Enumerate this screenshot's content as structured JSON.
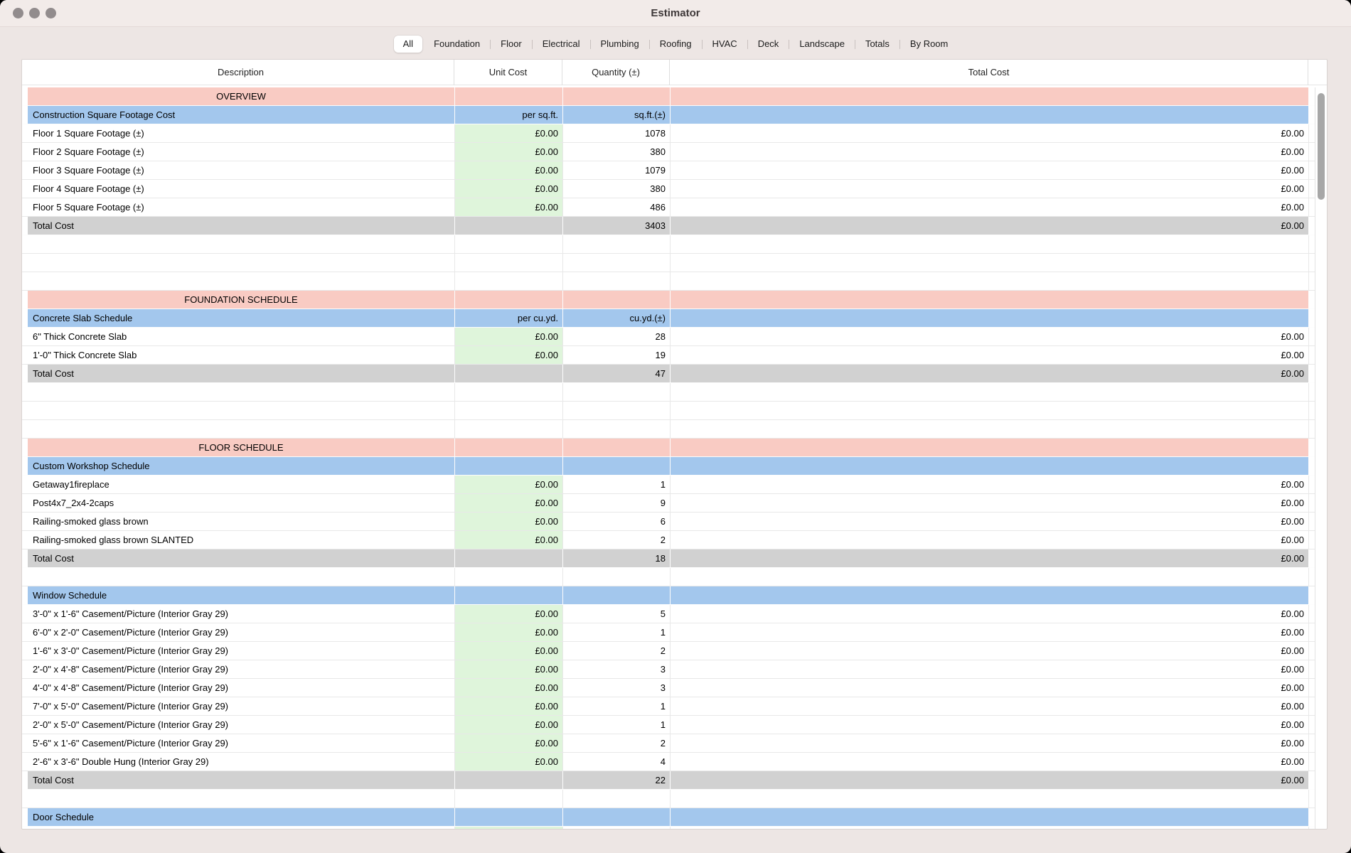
{
  "window": {
    "title": "Estimator"
  },
  "traffic_lights": [
    "close",
    "minimize",
    "zoom"
  ],
  "tabs": {
    "active": "All",
    "items": [
      "All",
      "Foundation",
      "Floor",
      "Electrical",
      "Plumbing",
      "Roofing",
      "HVAC",
      "Deck",
      "Landscape",
      "Totals",
      "By Room"
    ]
  },
  "colors": {
    "section_pink": "#F9CBC3",
    "subheader_blue": "#A3C7ED",
    "unitcost_green": "#DFF5DB",
    "total_gray": "#D1D1D1"
  },
  "table": {
    "columns": [
      "Description",
      "Unit Cost",
      "Quantity (±)",
      "Total Cost"
    ],
    "rows": [
      {
        "t": "section",
        "d": "OVERVIEW",
        "u": "",
        "q": "",
        "c": ""
      },
      {
        "t": "sub",
        "d": "Construction Square Footage Cost",
        "u": "per sq.ft.",
        "q": "sq.ft.(±)",
        "c": ""
      },
      {
        "t": "data",
        "d": "Floor 1 Square Footage (±)",
        "u": "£0.00",
        "q": "1078",
        "c": "£0.00"
      },
      {
        "t": "data",
        "d": "Floor 2 Square Footage (±)",
        "u": "£0.00",
        "q": "380",
        "c": "£0.00"
      },
      {
        "t": "data",
        "d": "Floor 3 Square Footage (±)",
        "u": "£0.00",
        "q": "1079",
        "c": "£0.00"
      },
      {
        "t": "data",
        "d": "Floor 4 Square Footage (±)",
        "u": "£0.00",
        "q": "380",
        "c": "£0.00"
      },
      {
        "t": "data",
        "d": "Floor 5 Square Footage (±)",
        "u": "£0.00",
        "q": "486",
        "c": "£0.00"
      },
      {
        "t": "totalrow",
        "d": "Total Cost",
        "u": "",
        "q": "3403",
        "c": "£0.00"
      },
      {
        "t": "empty",
        "d": "",
        "u": "",
        "q": "",
        "c": ""
      },
      {
        "t": "empty",
        "d": "",
        "u": "",
        "q": "",
        "c": ""
      },
      {
        "t": "empty",
        "d": "",
        "u": "",
        "q": "",
        "c": ""
      },
      {
        "t": "section",
        "d": "FOUNDATION SCHEDULE",
        "u": "",
        "q": "",
        "c": ""
      },
      {
        "t": "sub",
        "d": "Concrete Slab Schedule",
        "u": "per cu.yd.",
        "q": "cu.yd.(±)",
        "c": ""
      },
      {
        "t": "data",
        "d": "6\" Thick Concrete Slab",
        "u": "£0.00",
        "q": "28",
        "c": "£0.00"
      },
      {
        "t": "data",
        "d": "1'-0\" Thick Concrete Slab",
        "u": "£0.00",
        "q": "19",
        "c": "£0.00"
      },
      {
        "t": "totalrow",
        "d": "Total Cost",
        "u": "",
        "q": "47",
        "c": "£0.00"
      },
      {
        "t": "empty",
        "d": "",
        "u": "",
        "q": "",
        "c": ""
      },
      {
        "t": "empty",
        "d": "",
        "u": "",
        "q": "",
        "c": ""
      },
      {
        "t": "empty",
        "d": "",
        "u": "",
        "q": "",
        "c": ""
      },
      {
        "t": "section",
        "d": "FLOOR SCHEDULE",
        "u": "",
        "q": "",
        "c": ""
      },
      {
        "t": "sub",
        "d": "Custom Workshop Schedule",
        "u": "",
        "q": "",
        "c": ""
      },
      {
        "t": "data",
        "d": "Getaway1fireplace",
        "u": "£0.00",
        "q": "1",
        "c": "£0.00"
      },
      {
        "t": "data",
        "d": "Post4x7_2x4-2caps",
        "u": "£0.00",
        "q": "9",
        "c": "£0.00"
      },
      {
        "t": "data",
        "d": "Railing-smoked glass brown",
        "u": "£0.00",
        "q": "6",
        "c": "£0.00"
      },
      {
        "t": "data",
        "d": "Railing-smoked glass brown SLANTED",
        "u": "£0.00",
        "q": "2",
        "c": "£0.00"
      },
      {
        "t": "totalrow",
        "d": "Total Cost",
        "u": "",
        "q": "18",
        "c": "£0.00"
      },
      {
        "t": "empty",
        "d": "",
        "u": "",
        "q": "",
        "c": ""
      },
      {
        "t": "sub",
        "d": "Window Schedule",
        "u": "",
        "q": "",
        "c": ""
      },
      {
        "t": "data",
        "d": "3'-0\" x 1'-6\" Casement/Picture (Interior Gray 29)",
        "u": "£0.00",
        "q": "5",
        "c": "£0.00"
      },
      {
        "t": "data",
        "d": "6'-0\" x 2'-0\" Casement/Picture (Interior Gray 29)",
        "u": "£0.00",
        "q": "1",
        "c": "£0.00"
      },
      {
        "t": "data",
        "d": "1'-6\" x 3'-0\" Casement/Picture (Interior Gray 29)",
        "u": "£0.00",
        "q": "2",
        "c": "£0.00"
      },
      {
        "t": "data",
        "d": "2'-0\" x 4'-8\" Casement/Picture (Interior Gray 29)",
        "u": "£0.00",
        "q": "3",
        "c": "£0.00"
      },
      {
        "t": "data",
        "d": "4'-0\" x 4'-8\" Casement/Picture (Interior Gray 29)",
        "u": "£0.00",
        "q": "3",
        "c": "£0.00"
      },
      {
        "t": "data",
        "d": "7'-0\" x 5'-0\" Casement/Picture (Interior Gray 29)",
        "u": "£0.00",
        "q": "1",
        "c": "£0.00"
      },
      {
        "t": "data",
        "d": "2'-0\" x 5'-0\" Casement/Picture (Interior Gray 29)",
        "u": "£0.00",
        "q": "1",
        "c": "£0.00"
      },
      {
        "t": "data",
        "d": "5'-6\" x 1'-6\" Casement/Picture (Interior Gray 29)",
        "u": "£0.00",
        "q": "2",
        "c": "£0.00"
      },
      {
        "t": "data",
        "d": "2'-6\" x 3'-6\" Double Hung (Interior Gray 29)",
        "u": "£0.00",
        "q": "4",
        "c": "£0.00"
      },
      {
        "t": "totalrow",
        "d": "Total Cost",
        "u": "",
        "q": "22",
        "c": "£0.00"
      },
      {
        "t": "empty",
        "d": "",
        "u": "",
        "q": "",
        "c": ""
      },
      {
        "t": "sub",
        "d": "Door Schedule",
        "u": "",
        "q": "",
        "c": ""
      },
      {
        "t": "partial",
        "d": "",
        "u": "",
        "q": "",
        "c": ""
      }
    ]
  }
}
